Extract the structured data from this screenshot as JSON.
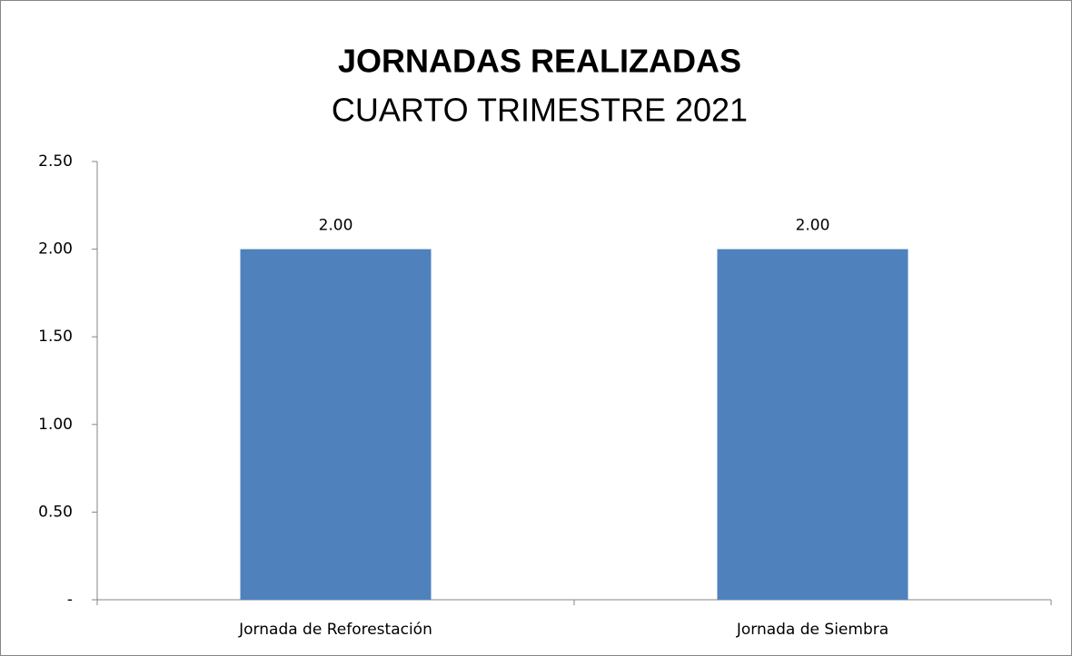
{
  "chart_data": {
    "type": "bar",
    "title": "JORNADAS REALIZADAS",
    "subtitle": "CUARTO TRIMESTRE 2021",
    "categories": [
      "Jornada de Reforestación",
      "Jornada de Siembra"
    ],
    "values": [
      2,
      2
    ],
    "value_labels": [
      "2.00",
      "2.00"
    ],
    "color": "#4f81bd",
    "ylim": [
      0,
      2.5
    ],
    "yticks": [
      {
        "value": 0,
        "label": "-"
      },
      {
        "value": 0.5,
        "label": "0.50"
      },
      {
        "value": 1,
        "label": "1.00"
      },
      {
        "value": 1.5,
        "label": "1.50"
      },
      {
        "value": 2,
        "label": "2.00"
      },
      {
        "value": 2.5,
        "label": "2.50"
      }
    ],
    "grid": false
  }
}
